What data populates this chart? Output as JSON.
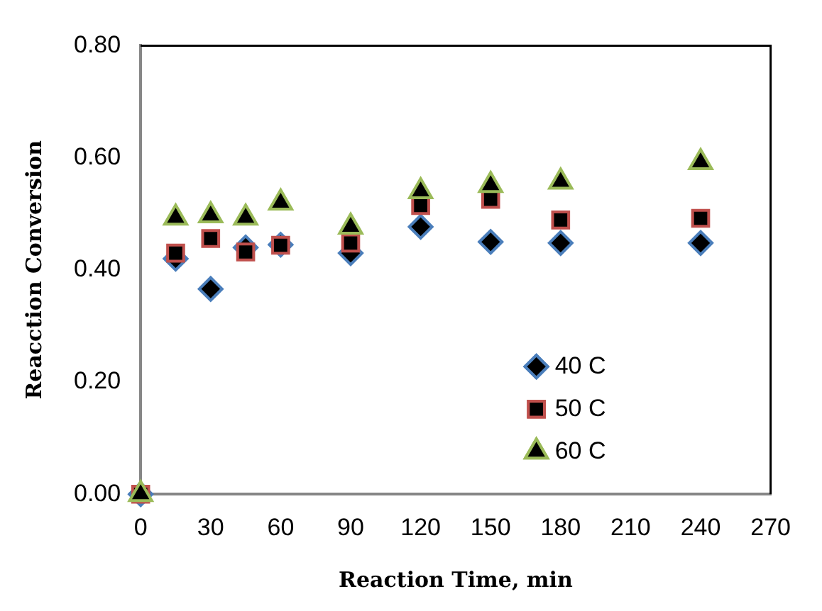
{
  "chart_data": {
    "type": "scatter",
    "xlabel": "Reaction Time, min",
    "ylabel": "Reacction Conversion",
    "x": [
      0,
      15,
      30,
      45,
      60,
      90,
      120,
      150,
      180,
      240
    ],
    "series": [
      {
        "name": "40 C",
        "color": "#4a7ebb",
        "marker": "diamond",
        "values": [
          0,
          0.42,
          0.366,
          0.44,
          0.445,
          0.43,
          0.477,
          0.45,
          0.448,
          0.448
        ]
      },
      {
        "name": "50 C",
        "color": "#c0504d",
        "marker": "square",
        "values": [
          0,
          0.43,
          0.456,
          0.432,
          0.444,
          0.448,
          0.515,
          0.526,
          0.489,
          0.492
        ]
      },
      {
        "name": "60 C",
        "color": "#9bbb59",
        "marker": "triangle",
        "values": [
          0,
          0.493,
          0.497,
          0.493,
          0.52,
          0.477,
          0.54,
          0.551,
          0.557,
          0.592
        ]
      }
    ],
    "xlim": [
      0,
      270
    ],
    "xticks": [
      0,
      30,
      60,
      90,
      120,
      150,
      180,
      210,
      240,
      270
    ],
    "ylim": [
      0,
      0.8
    ],
    "yticks": [
      {
        "value": 0,
        "label": "0.00"
      },
      {
        "value": 0.2,
        "label": "0.20"
      },
      {
        "value": 0.4,
        "label": "0.40"
      },
      {
        "value": 0.6,
        "label": "0.60"
      },
      {
        "value": 0.8,
        "label": "0.80"
      }
    ],
    "grid": false,
    "legend": "bottom right"
  }
}
